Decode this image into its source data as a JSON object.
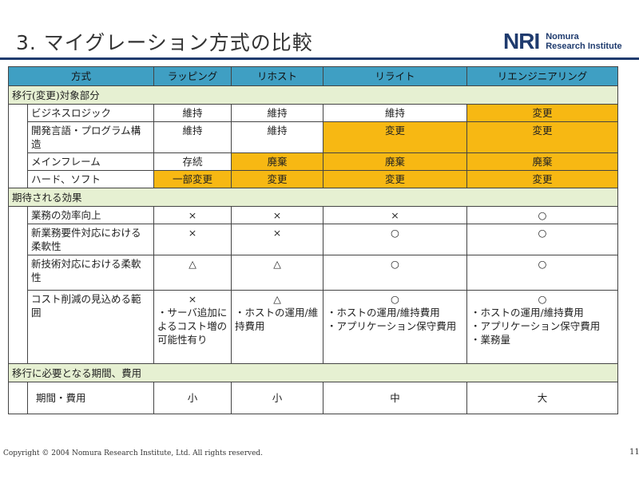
{
  "title": "3. マイグレーション方式の比較",
  "logo": {
    "mark": "NRI",
    "line1": "Nomura",
    "line2": "Research Institute"
  },
  "table": {
    "headers": [
      "方式",
      "ラッピング",
      "リホスト",
      "リライト",
      "リエンジニアリング"
    ],
    "sections": [
      {
        "label": "移行(変更)対象部分",
        "rows": [
          {
            "label": "ビジネスロジック",
            "cells": [
              "維持",
              "維持",
              "維持",
              "変更"
            ]
          },
          {
            "label": "開発言語・プログラム構造",
            "cells": [
              "維持",
              "維持",
              "変更",
              "変更"
            ]
          },
          {
            "label": "メインフレーム",
            "cells": [
              "存続",
              "廃棄",
              "廃棄",
              "廃棄"
            ]
          },
          {
            "label": "ハード、ソフト",
            "cells": [
              "一部変更",
              "変更",
              "変更",
              "変更"
            ]
          }
        ]
      },
      {
        "label": "期待される効果",
        "rows": [
          {
            "label": "業務の効率向上",
            "cells": [
              "×",
              "×",
              "×",
              "○"
            ]
          },
          {
            "label": "新業務要件対応における柔軟性",
            "cells": [
              "×",
              "×",
              "○",
              "○"
            ]
          },
          {
            "label": "新技術対応における柔軟性",
            "cells": [
              "△",
              "△",
              "○",
              "○"
            ]
          },
          {
            "label": "コスト削減の見込める範囲",
            "cells": [
              "×",
              "△",
              "○",
              "○"
            ],
            "notes": [
              [
                "・サーバ追加によるコスト増の可能性有り"
              ],
              [
                "・ホストの運用/維持費用"
              ],
              [
                "・ホストの運用/維持費用",
                "・アプリケーション保守費用"
              ],
              [
                "・ホストの運用/維持費用",
                "・アプリケーション保守費用",
                "・業務量"
              ]
            ]
          }
        ]
      },
      {
        "label": "移行に必要となる期間、費用",
        "rows": [
          {
            "label": "期間・費用",
            "cells": [
              "小",
              "小",
              "中",
              "大"
            ]
          }
        ]
      }
    ]
  },
  "footer": "Copyright © 2004 Nomura Research Institute, Ltd. All rights reserved.",
  "page_number": "11",
  "colors": {
    "header": "#3f9fc3",
    "section": "#e6f0d2",
    "highlight": "#f7b813",
    "rule": "#1f3b6e"
  }
}
